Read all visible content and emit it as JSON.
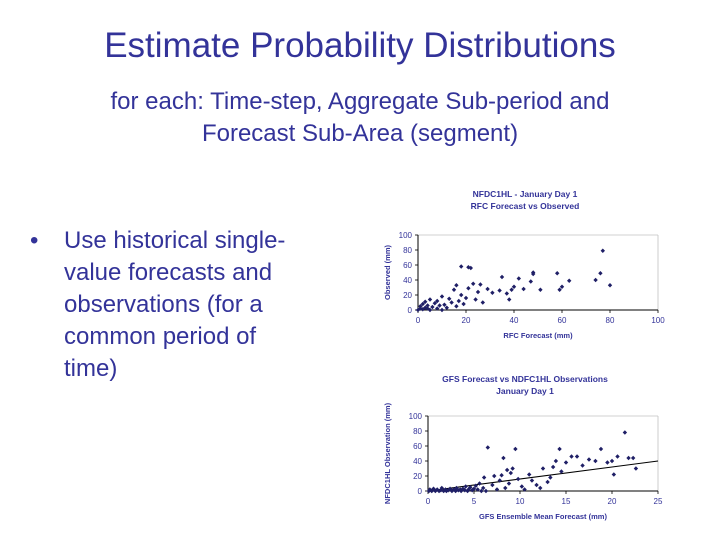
{
  "slide": {
    "title": "Estimate Probability Distributions",
    "subtitle_line1": "for each:  Time-step, Aggregate Sub-period and",
    "subtitle_line2": "Forecast Sub-Area (segment)",
    "bullet_marker": "•",
    "bullet_lines": [
      "Use historical single-",
      "value forecasts and",
      "observations (for a",
      "common period of",
      "time)"
    ]
  },
  "colors": {
    "text": "#333399",
    "points": "#1f1f66",
    "axis": "#000000",
    "frame": "#c0c0c0"
  },
  "chart_data": [
    {
      "type": "scatter",
      "title": "NFDC1HL - January Day 1",
      "subtitle": "RFC Forecast vs Observed",
      "xlabel": "RFC Forecast (mm)",
      "ylabel": "Observed (mm)",
      "xlim": [
        0,
        100
      ],
      "ylim": [
        0,
        100
      ],
      "xticks": [
        0,
        20,
        40,
        60,
        80,
        100
      ],
      "yticks": [
        0,
        20,
        40,
        60,
        80,
        100
      ],
      "points": [
        [
          0,
          0
        ],
        [
          1,
          2
        ],
        [
          1,
          5
        ],
        [
          2,
          1
        ],
        [
          2,
          8
        ],
        [
          3,
          3
        ],
        [
          3,
          11
        ],
        [
          4,
          2
        ],
        [
          4,
          6
        ],
        [
          5,
          0
        ],
        [
          5,
          14
        ],
        [
          6,
          4
        ],
        [
          7,
          9
        ],
        [
          8,
          2
        ],
        [
          8,
          12
        ],
        [
          9,
          6
        ],
        [
          10,
          0
        ],
        [
          10,
          18
        ],
        [
          11,
          7
        ],
        [
          12,
          3
        ],
        [
          13,
          15
        ],
        [
          14,
          10
        ],
        [
          15,
          27
        ],
        [
          16,
          5
        ],
        [
          16,
          33
        ],
        [
          17,
          12
        ],
        [
          18,
          20
        ],
        [
          18,
          58
        ],
        [
          19,
          8
        ],
        [
          20,
          16
        ],
        [
          21,
          29
        ],
        [
          21,
          57
        ],
        [
          22,
          56
        ],
        [
          23,
          35
        ],
        [
          24,
          14
        ],
        [
          25,
          24
        ],
        [
          26,
          34
        ],
        [
          27,
          10
        ],
        [
          29,
          28
        ],
        [
          31,
          23
        ],
        [
          34,
          26
        ],
        [
          35,
          44
        ],
        [
          37,
          22
        ],
        [
          38,
          14
        ],
        [
          39,
          27
        ],
        [
          40,
          31
        ],
        [
          42,
          42
        ],
        [
          44,
          28
        ],
        [
          47,
          38
        ],
        [
          48,
          48
        ],
        [
          48,
          50
        ],
        [
          51,
          27
        ],
        [
          58,
          49
        ],
        [
          59,
          27
        ],
        [
          60,
          31
        ],
        [
          63,
          39
        ],
        [
          74,
          40
        ],
        [
          76,
          49
        ],
        [
          77,
          79
        ],
        [
          80,
          33
        ]
      ]
    },
    {
      "type": "scatter",
      "title": "GFS Forecast vs NDFC1HL Observations",
      "subtitle": "January Day 1",
      "xlabel": "GFS Ensemble Mean Forecast (mm)",
      "ylabel": "NFDC1HL Observation (mm)",
      "xlim": [
        0,
        25
      ],
      "ylim": [
        0,
        100
      ],
      "xticks": [
        0,
        5,
        10,
        15,
        20,
        25
      ],
      "yticks": [
        0,
        20,
        40,
        60,
        80,
        100
      ],
      "trendline": [
        [
          0,
          0
        ],
        [
          25,
          40
        ]
      ],
      "points": [
        [
          0.1,
          0
        ],
        [
          0.2,
          2
        ],
        [
          0.4,
          0
        ],
        [
          0.5,
          1
        ],
        [
          0.6,
          3
        ],
        [
          0.8,
          0
        ],
        [
          1.0,
          2
        ],
        [
          1.2,
          0
        ],
        [
          1.4,
          1
        ],
        [
          1.5,
          4
        ],
        [
          1.7,
          0
        ],
        [
          1.9,
          2
        ],
        [
          2.0,
          0
        ],
        [
          2.2,
          1
        ],
        [
          2.4,
          3
        ],
        [
          2.6,
          0
        ],
        [
          2.8,
          2
        ],
        [
          3.0,
          0
        ],
        [
          3.1,
          4
        ],
        [
          3.3,
          1
        ],
        [
          3.5,
          2
        ],
        [
          3.6,
          0
        ],
        [
          3.8,
          3
        ],
        [
          4.0,
          1
        ],
        [
          4.1,
          6
        ],
        [
          4.3,
          0
        ],
        [
          4.4,
          2
        ],
        [
          4.6,
          5
        ],
        [
          4.8,
          1
        ],
        [
          5.0,
          3
        ],
        [
          5.2,
          7
        ],
        [
          5.4,
          2
        ],
        [
          5.6,
          10
        ],
        [
          5.8,
          0
        ],
        [
          6.0,
          4
        ],
        [
          6.1,
          18
        ],
        [
          6.3,
          0
        ],
        [
          6.5,
          58
        ],
        [
          7.0,
          8
        ],
        [
          7.2,
          20
        ],
        [
          7.5,
          2
        ],
        [
          7.8,
          14
        ],
        [
          8.0,
          21
        ],
        [
          8.2,
          44
        ],
        [
          8.4,
          4
        ],
        [
          8.6,
          28
        ],
        [
          8.8,
          10
        ],
        [
          9.0,
          24
        ],
        [
          9.2,
          30
        ],
        [
          9.5,
          56
        ],
        [
          9.8,
          16
        ],
        [
          10.2,
          6
        ],
        [
          10.5,
          2
        ],
        [
          11.0,
          22
        ],
        [
          11.3,
          14
        ],
        [
          11.8,
          8
        ],
        [
          12.2,
          4
        ],
        [
          12.5,
          30
        ],
        [
          13.0,
          12
        ],
        [
          13.3,
          18
        ],
        [
          13.6,
          32
        ],
        [
          13.9,
          40
        ],
        [
          14.3,
          56
        ],
        [
          14.5,
          26
        ],
        [
          15.0,
          38
        ],
        [
          15.6,
          46
        ],
        [
          16.2,
          46
        ],
        [
          16.8,
          34
        ],
        [
          17.5,
          42
        ],
        [
          18.2,
          40
        ],
        [
          18.8,
          56
        ],
        [
          19.5,
          38
        ],
        [
          20.0,
          40
        ],
        [
          20.2,
          22
        ],
        [
          20.6,
          46
        ],
        [
          21.4,
          78
        ],
        [
          21.8,
          44
        ],
        [
          22.3,
          44
        ],
        [
          22.6,
          30
        ]
      ]
    }
  ]
}
